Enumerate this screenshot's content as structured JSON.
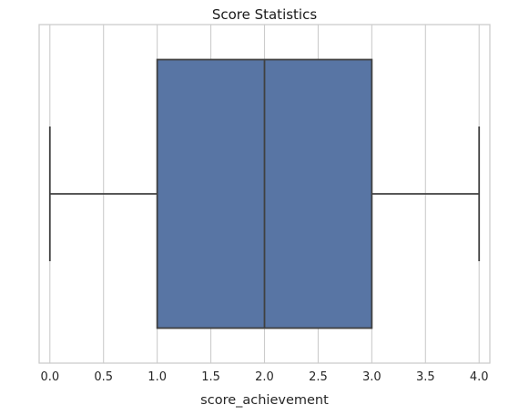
{
  "chart_data": {
    "type": "box",
    "title": "Score Statistics",
    "xlabel": "score_achievement",
    "ylabel": "",
    "orientation": "horizontal",
    "xlim": [
      -0.1,
      4.1
    ],
    "xticks": [
      0.0,
      0.5,
      1.0,
      1.5,
      2.0,
      2.5,
      3.0,
      3.5,
      4.0
    ],
    "tick_labels": [
      "0.0",
      "0.5",
      "1.0",
      "1.5",
      "2.0",
      "2.5",
      "3.0",
      "3.5",
      "4.0"
    ],
    "grid": true,
    "series": [
      {
        "min": 0.0,
        "q1": 1.0,
        "median": 2.0,
        "q3": 3.0,
        "max": 4.0
      }
    ],
    "colors": {
      "box_fill": "#5875a4",
      "lines": "#404040",
      "grid": "#cccccc",
      "spine": "#cccccc"
    }
  }
}
